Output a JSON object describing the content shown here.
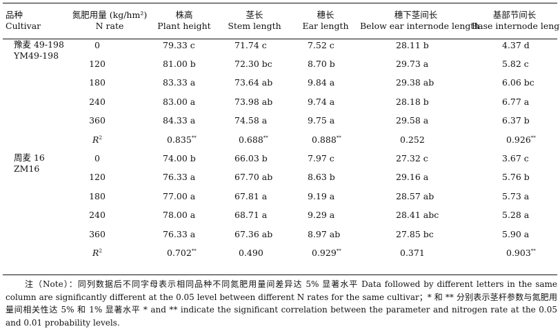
{
  "header": {
    "cultivar_cn": "品种",
    "cultivar_en": "Cultivar",
    "nrate_cn": "氮肥用量 (kg/hm²)",
    "nrate_en": "N rate",
    "height_cn": "株高",
    "height_en": "Plant height",
    "stem_cn": "茎长",
    "stem_en": "Stem length",
    "ear_cn": "穗长",
    "ear_en": "Ear length",
    "below_cn": "穗下茎间长",
    "below_en": "Below ear internode length",
    "base_cn": "基部节间长",
    "base_en": "Base internode length"
  },
  "groups": [
    {
      "cultivar_cn": "豫麦 49-198",
      "cultivar_en": "YM49-198",
      "rows": [
        {
          "n": "0",
          "height": "79.33 c",
          "stem": "71.74 c",
          "ear": "7.52 c",
          "below": "28.11 b",
          "base": "4.37 d"
        },
        {
          "n": "120",
          "height": "81.00 b",
          "stem": "72.30 bc",
          "ear": "8.70 b",
          "below": "29.73 a",
          "base": "5.82 c"
        },
        {
          "n": "180",
          "height": "83.33 a",
          "stem": "73.64 ab",
          "ear": "9.84 a",
          "below": "29.38 ab",
          "base": "6.06 bc"
        },
        {
          "n": "240",
          "height": "83.00 a",
          "stem": "73.98 ab",
          "ear": "9.74 a",
          "below": "28.18 b",
          "base": "6.77 a"
        },
        {
          "n": "360",
          "height": "84.33 a",
          "stem": "74.58 a",
          "ear": "9.75 a",
          "below": "29.58 a",
          "base": "6.37 b"
        }
      ],
      "r2": {
        "label": "R",
        "sup": "2",
        "height": "0.835",
        "height_sig": "**",
        "stem": "0.688",
        "stem_sig": "**",
        "ear": "0.888",
        "ear_sig": "**",
        "below": "0.252",
        "below_sig": "",
        "base": "0.926",
        "base_sig": "**"
      }
    },
    {
      "cultivar_cn": "周麦 16",
      "cultivar_en": "ZM16",
      "rows": [
        {
          "n": "0",
          "height": "74.00 b",
          "stem": "66.03 b",
          "ear": "7.97 c",
          "below": "27.32 c",
          "base": "3.67 c"
        },
        {
          "n": "120",
          "height": "76.33 a",
          "stem": "67.70 ab",
          "ear": "8.63 b",
          "below": "29.16 a",
          "base": "5.76 b"
        },
        {
          "n": "180",
          "height": "77.00 a",
          "stem": "67.81 a",
          "ear": "9.19 a",
          "below": "28.57 ab",
          "base": "5.73 a"
        },
        {
          "n": "240",
          "height": "78.00 a",
          "stem": "68.71 a",
          "ear": "9.29 a",
          "below": "28.41 abc",
          "base": "5.28 a"
        },
        {
          "n": "360",
          "height": "76.33 a",
          "stem": "67.36 ab",
          "ear": "8.97 ab",
          "below": "27.85 bc",
          "base": "5.90 a"
        }
      ],
      "r2": {
        "label": "R",
        "sup": "2",
        "height": "0.702",
        "height_sig": "**",
        "stem": "0.490",
        "stem_sig": "",
        "ear": "0.929",
        "ear_sig": "**",
        "below": "0.371",
        "below_sig": "",
        "base": "0.903",
        "base_sig": "**"
      }
    }
  ],
  "note": "注（Note）：同列数据后不同字母表示相同品种不同氮肥用量间差异达 5% 显著水平 Data followed by different letters in the same column are significantly different at the 0.05 level between different N rates for the same cultivar；* 和 ** 分别表示茎杆参数与氮肥用量间相关性达 5% 和 1% 显著水平 * and ** indicate the significant correlation between the parameter and nitrogen rate at the 0.05 and 0.01 probability levels."
}
